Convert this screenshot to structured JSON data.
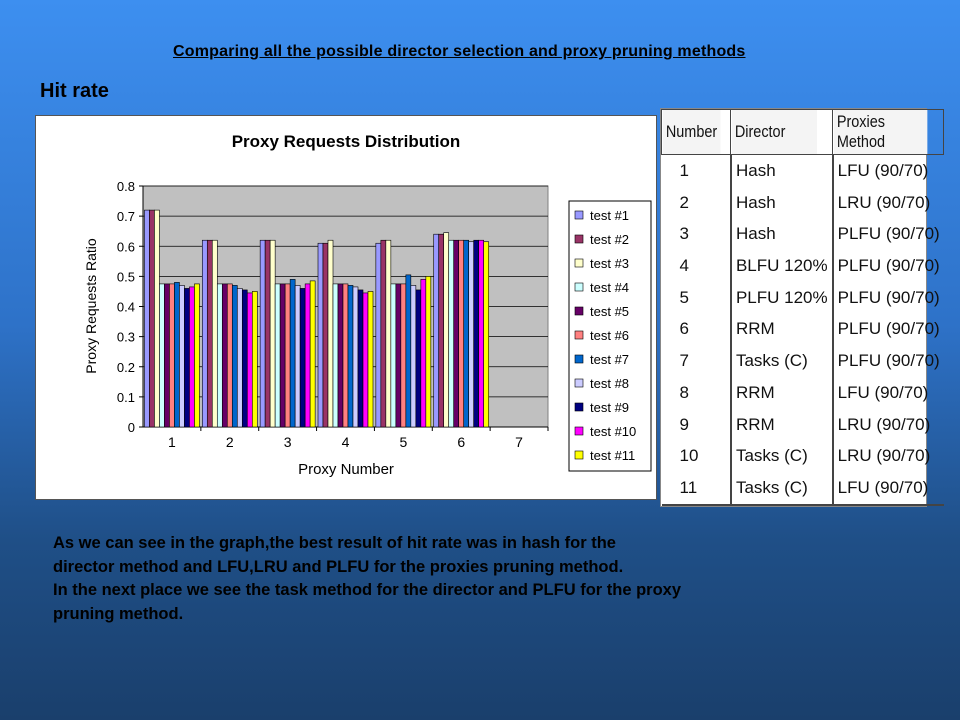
{
  "slide_title": "Comparing all the possible director selection and proxy pruning methods",
  "section_heading": "Hit rate",
  "chart_data": {
    "type": "bar",
    "title": "Proxy Requests Distribution",
    "xlabel": "Proxy Number",
    "ylabel": "Proxy Requests Ratio",
    "categories": [
      "1",
      "2",
      "3",
      "4",
      "5",
      "6",
      "7"
    ],
    "yticks": [
      "0",
      "0.1",
      "0.2",
      "0.3",
      "0.4",
      "0.5",
      "0.6",
      "0.7",
      "0.8"
    ],
    "ylim": [
      0,
      0.8
    ],
    "grid": true,
    "legend_position": "right",
    "plot_background": "#c0c0c0",
    "series": [
      {
        "name": "test #1",
        "color": "#9999ff",
        "values": [
          0.72,
          0.62,
          0.62,
          0.61,
          0.61,
          0.64,
          0
        ]
      },
      {
        "name": "test #2",
        "color": "#993366",
        "values": [
          0.72,
          0.62,
          0.62,
          0.61,
          0.62,
          0.64,
          0
        ]
      },
      {
        "name": "test #3",
        "color": "#ffffcc",
        "values": [
          0.72,
          0.62,
          0.62,
          0.62,
          0.62,
          0.645,
          0
        ]
      },
      {
        "name": "test #4",
        "color": "#ccffff",
        "values": [
          0.475,
          0.475,
          0.475,
          0.475,
          0.475,
          0.62,
          0
        ]
      },
      {
        "name": "test #5",
        "color": "#660066",
        "values": [
          0.475,
          0.475,
          0.475,
          0.475,
          0.475,
          0.62,
          0
        ]
      },
      {
        "name": "test #6",
        "color": "#ff8080",
        "values": [
          0.475,
          0.475,
          0.475,
          0.475,
          0.475,
          0.62,
          0
        ]
      },
      {
        "name": "test #7",
        "color": "#0066cc",
        "values": [
          0.48,
          0.47,
          0.49,
          0.47,
          0.505,
          0.62,
          0
        ]
      },
      {
        "name": "test #8",
        "color": "#ccccff",
        "values": [
          0.47,
          0.46,
          0.47,
          0.465,
          0.47,
          0.615,
          0
        ]
      },
      {
        "name": "test #9",
        "color": "#000080",
        "values": [
          0.46,
          0.455,
          0.46,
          0.455,
          0.455,
          0.62,
          0
        ]
      },
      {
        "name": "test #10",
        "color": "#ff00ff",
        "values": [
          0.465,
          0.445,
          0.475,
          0.445,
          0.49,
          0.62,
          0
        ]
      },
      {
        "name": "test #11",
        "color": "#ffff00",
        "values": [
          0.475,
          0.45,
          0.485,
          0.45,
          0.5,
          0.615,
          0
        ]
      }
    ]
  },
  "methods_table": {
    "headers": [
      "Number",
      "Director",
      "Proxies Method"
    ],
    "rows": [
      [
        "1",
        "Hash",
        "LFU (90/70)"
      ],
      [
        "2",
        "Hash",
        "LRU (90/70)"
      ],
      [
        "3",
        "Hash",
        "PLFU (90/70)"
      ],
      [
        "4",
        "BLFU 120%",
        "PLFU (90/70)"
      ],
      [
        "5",
        "PLFU 120%",
        "PLFU (90/70)"
      ],
      [
        "6",
        "RRM",
        "PLFU (90/70)"
      ],
      [
        "7",
        "Tasks (C)",
        "PLFU (90/70)"
      ],
      [
        "8",
        "RRM",
        "LFU (90/70)"
      ],
      [
        "9",
        "RRM",
        "LRU (90/70)"
      ],
      [
        "10",
        "Tasks (C)",
        "LRU (90/70)"
      ],
      [
        "11",
        "Tasks (C)",
        "LFU (90/70)"
      ]
    ]
  },
  "body_text": [
    "As we can see in the graph,the best result of hit rate was in hash for the",
    "director method and LFU,LRU and PLFU for the proxies pruning method.",
    "In the next place we see the task method for the director and PLFU for the proxy",
    "pruning method."
  ]
}
